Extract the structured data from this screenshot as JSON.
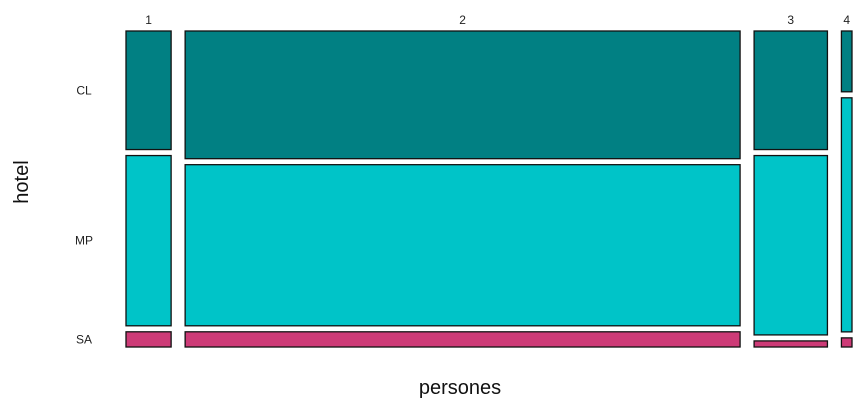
{
  "chart_data": {
    "type": "mosaic",
    "xlabel": "persones",
    "ylabel": "hotel",
    "x_categories": [
      "1",
      "2",
      "3",
      "4"
    ],
    "y_categories": [
      "CL",
      "MP",
      "SA"
    ],
    "column_proportions": [
      0.064,
      0.787,
      0.104,
      0.015
    ],
    "cells": [
      {
        "x": "1",
        "proportions": {
          "CL": 0.39,
          "MP": 0.56,
          "SA": 0.05
        }
      },
      {
        "x": "2",
        "proportions": {
          "CL": 0.42,
          "MP": 0.53,
          "SA": 0.05
        }
      },
      {
        "x": "3",
        "proportions": {
          "CL": 0.39,
          "MP": 0.59,
          "SA": 0.02
        }
      },
      {
        "x": "4",
        "proportions": {
          "CL": 0.2,
          "MP": 0.77,
          "SA": 0.03
        }
      }
    ],
    "colors": {
      "CL": "#018083",
      "MP": "#00c4c8",
      "SA": "#cd3b77"
    },
    "grid": false,
    "legend": "none"
  }
}
